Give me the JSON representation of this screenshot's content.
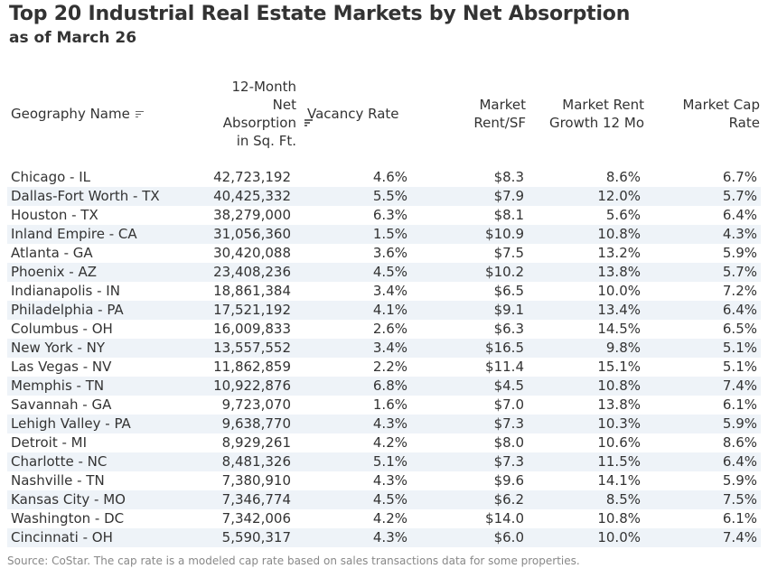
{
  "title": "Top 20 Industrial Real Estate Markets by Net Absorption",
  "subtitle": "as of March 26",
  "source": "Source: CoStar. The cap rate is a modeled cap rate based on sales transactions data for some properties.",
  "chart_data": {
    "type": "table",
    "columns": [
      "Geography Name",
      "12-Month Net Absorption in Sq. Ft.",
      "Vacancy Rate",
      "Market Rent/SF",
      "Market Rent Growth 12 Mo",
      "Market Cap Rate"
    ],
    "rows": [
      {
        "geography": "Chicago - IL",
        "absorption": "42,723,192",
        "vacancy": "4.6%",
        "rent": "$8.3",
        "growth": "8.6%",
        "cap": "6.7%"
      },
      {
        "geography": "Dallas-Fort Worth - TX",
        "absorption": "40,425,332",
        "vacancy": "5.5%",
        "rent": "$7.9",
        "growth": "12.0%",
        "cap": "5.7%"
      },
      {
        "geography": "Houston - TX",
        "absorption": "38,279,000",
        "vacancy": "6.3%",
        "rent": "$8.1",
        "growth": "5.6%",
        "cap": "6.4%"
      },
      {
        "geography": "Inland Empire - CA",
        "absorption": "31,056,360",
        "vacancy": "1.5%",
        "rent": "$10.9",
        "growth": "10.8%",
        "cap": "4.3%"
      },
      {
        "geography": "Atlanta - GA",
        "absorption": "30,420,088",
        "vacancy": "3.6%",
        "rent": "$7.5",
        "growth": "13.2%",
        "cap": "5.9%"
      },
      {
        "geography": "Phoenix - AZ",
        "absorption": "23,408,236",
        "vacancy": "4.5%",
        "rent": "$10.2",
        "growth": "13.8%",
        "cap": "5.7%"
      },
      {
        "geography": "Indianapolis - IN",
        "absorption": "18,861,384",
        "vacancy": "3.4%",
        "rent": "$6.5",
        "growth": "10.0%",
        "cap": "7.2%"
      },
      {
        "geography": "Philadelphia - PA",
        "absorption": "17,521,192",
        "vacancy": "4.1%",
        "rent": "$9.1",
        "growth": "13.4%",
        "cap": "6.4%"
      },
      {
        "geography": "Columbus - OH",
        "absorption": "16,009,833",
        "vacancy": "2.6%",
        "rent": "$6.3",
        "growth": "14.5%",
        "cap": "6.5%"
      },
      {
        "geography": "New York - NY",
        "absorption": "13,557,552",
        "vacancy": "3.4%",
        "rent": "$16.5",
        "growth": "9.8%",
        "cap": "5.1%"
      },
      {
        "geography": "Las Vegas - NV",
        "absorption": "11,862,859",
        "vacancy": "2.2%",
        "rent": "$11.4",
        "growth": "15.1%",
        "cap": "5.1%"
      },
      {
        "geography": "Memphis - TN",
        "absorption": "10,922,876",
        "vacancy": "6.8%",
        "rent": "$4.5",
        "growth": "10.8%",
        "cap": "7.4%"
      },
      {
        "geography": "Savannah - GA",
        "absorption": "9,723,070",
        "vacancy": "1.6%",
        "rent": "$7.0",
        "growth": "13.8%",
        "cap": "6.1%"
      },
      {
        "geography": "Lehigh Valley - PA",
        "absorption": "9,638,770",
        "vacancy": "4.3%",
        "rent": "$7.3",
        "growth": "10.3%",
        "cap": "5.9%"
      },
      {
        "geography": "Detroit - MI",
        "absorption": "8,929,261",
        "vacancy": "4.2%",
        "rent": "$8.0",
        "growth": "10.6%",
        "cap": "8.6%"
      },
      {
        "geography": "Charlotte - NC",
        "absorption": "8,481,326",
        "vacancy": "5.1%",
        "rent": "$7.3",
        "growth": "11.5%",
        "cap": "6.4%"
      },
      {
        "geography": "Nashville - TN",
        "absorption": "7,380,910",
        "vacancy": "4.3%",
        "rent": "$9.6",
        "growth": "14.1%",
        "cap": "5.9%"
      },
      {
        "geography": "Kansas City - MO",
        "absorption": "7,346,774",
        "vacancy": "4.5%",
        "rent": "$6.2",
        "growth": "8.5%",
        "cap": "7.5%"
      },
      {
        "geography": "Washington - DC",
        "absorption": "7,342,006",
        "vacancy": "4.2%",
        "rent": "$14.0",
        "growth": "10.8%",
        "cap": "6.1%"
      },
      {
        "geography": "Cincinnati - OH",
        "absorption": "5,590,317",
        "vacancy": "4.3%",
        "rent": "$6.0",
        "growth": "10.0%",
        "cap": "7.4%"
      }
    ]
  },
  "colors": {
    "alt_row": "#eef3f8",
    "text": "#333333",
    "source_text": "#888888"
  },
  "icons": [
    "sort-icon"
  ]
}
